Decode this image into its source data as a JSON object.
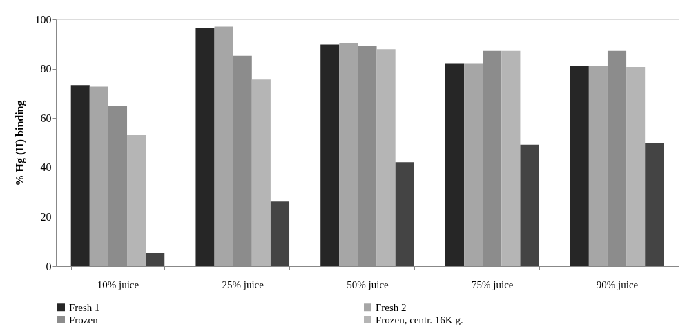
{
  "chart_data": {
    "type": "bar",
    "ylabel": "% Hg (II) binding",
    "categories": [
      "10% juice",
      "25% juice",
      "50% juice",
      "75% juice",
      "90% juice"
    ],
    "series": [
      {
        "name": "Fresh 1",
        "color": "#262626",
        "values": [
          73.4,
          96.5,
          89.8,
          82.0,
          81.3
        ]
      },
      {
        "name": "Fresh 2",
        "color": "#a6a6a6",
        "values": [
          72.8,
          97.1,
          90.4,
          82.0,
          81.3
        ]
      },
      {
        "name": "Frozen",
        "color": "#8c8c8c",
        "values": [
          65.0,
          85.3,
          89.1,
          87.2,
          87.2
        ]
      },
      {
        "name": "Frozen, centr. 16K g.",
        "color": "#b5b5b5",
        "values": [
          53.1,
          75.6,
          87.9,
          87.2,
          80.7
        ]
      },
      {
        "color": "#444444",
        "values": [
          5.3,
          26.2,
          42.1,
          49.2,
          49.9
        ]
      }
    ],
    "ylim": [
      0,
      100
    ],
    "yticks": [
      0,
      20,
      40,
      60,
      80,
      100
    ],
    "grid": false,
    "legend": "bottom"
  }
}
